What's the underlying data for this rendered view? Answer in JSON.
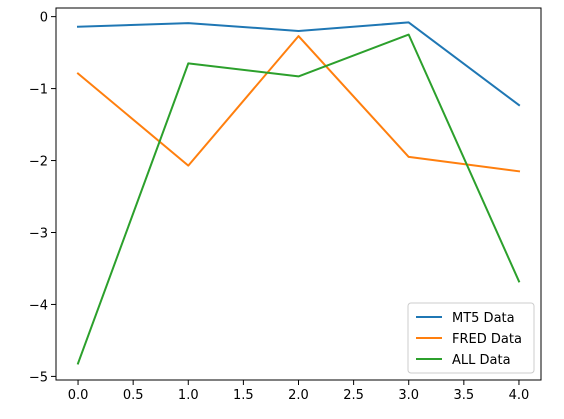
{
  "chart_data": {
    "type": "line",
    "x": [
      0.0,
      1.0,
      2.0,
      3.0,
      4.0
    ],
    "xlim": [
      -0.2,
      4.2
    ],
    "ylim": [
      -5.05,
      0.12
    ],
    "xticks": [
      0.0,
      0.5,
      1.0,
      1.5,
      2.0,
      2.5,
      3.0,
      3.5,
      4.0
    ],
    "xtick_labels": [
      "0.0",
      "0.5",
      "1.0",
      "1.5",
      "2.0",
      "2.5",
      "3.0",
      "3.5",
      "4.0"
    ],
    "yticks": [
      0,
      -1,
      -2,
      -3,
      -4,
      -5
    ],
    "ytick_labels": [
      "0",
      "−1",
      "−2",
      "−3",
      "−4",
      "−5"
    ],
    "grid": false,
    "legend_position": "lower-right",
    "series": [
      {
        "name": "MT5 Data",
        "color": "#1f77b4",
        "values": [
          -0.14,
          -0.09,
          -0.2,
          -0.08,
          -1.23
        ]
      },
      {
        "name": "FRED Data",
        "color": "#ff7f0e",
        "values": [
          -0.79,
          -2.07,
          -0.27,
          -1.95,
          -2.15
        ]
      },
      {
        "name": "ALL Data",
        "color": "#2ca02c",
        "values": [
          -4.82,
          -0.65,
          -0.83,
          -0.25,
          -3.68
        ]
      }
    ]
  }
}
